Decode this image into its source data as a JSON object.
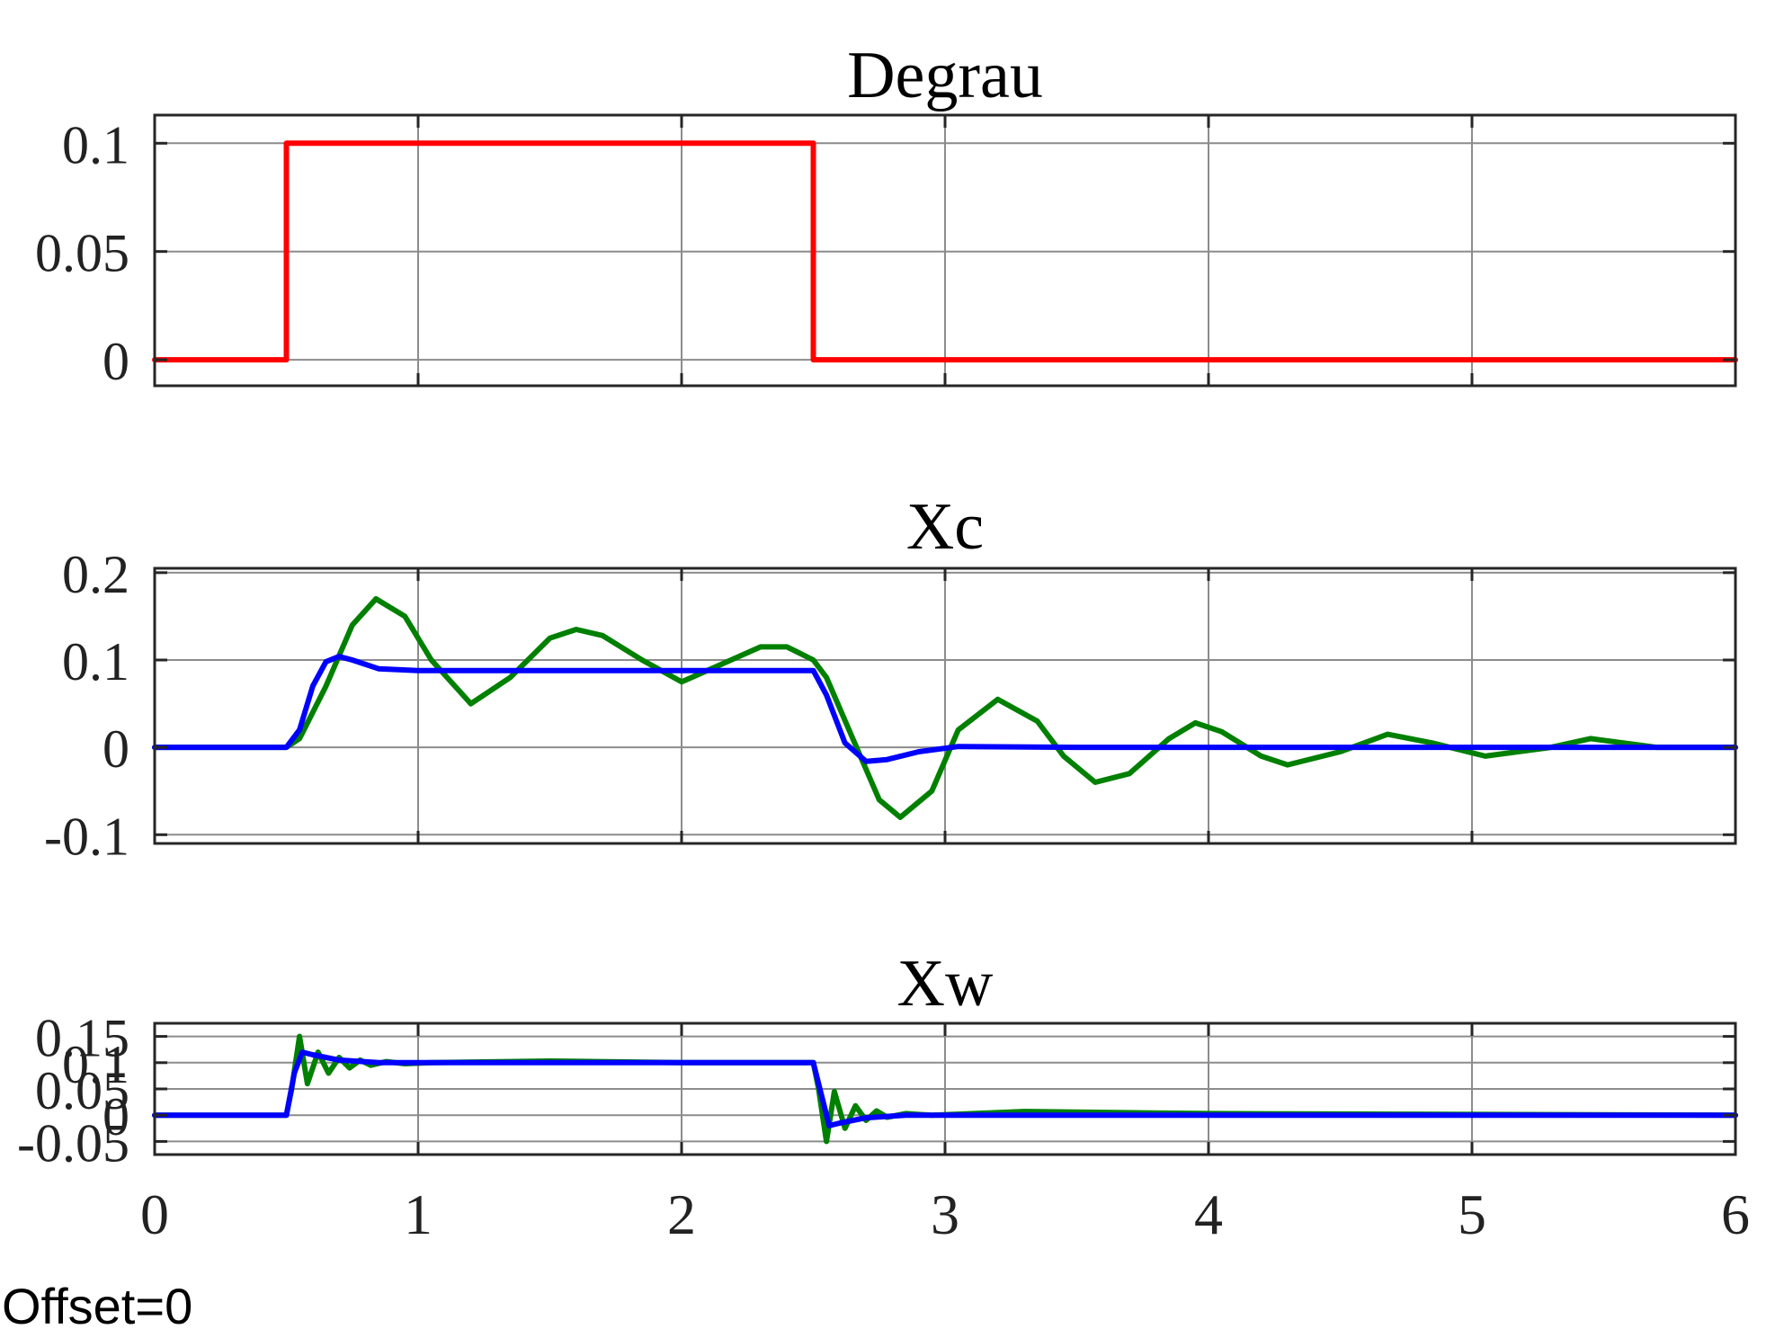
{
  "footer": {
    "offset_text": "Offset=0"
  },
  "colors": {
    "degrau": "#ff0000",
    "green": "#008000",
    "blue": "#0000ff",
    "grid": "#8c8c8c",
    "axes": "#262626"
  },
  "chart_data": [
    {
      "type": "line",
      "title": "Degrau",
      "xlim": [
        0,
        6
      ],
      "ylim": [
        -0.012,
        0.113
      ],
      "yticks": [
        0,
        0.05,
        0.1
      ],
      "ytick_labels": [
        "0",
        "0.05",
        "0.1"
      ],
      "xticks": [
        0,
        1,
        2,
        3,
        4,
        5,
        6
      ],
      "xtick_labels": [],
      "grid": true,
      "series": [
        {
          "color": "#ff0000",
          "x": [
            0,
            0.5,
            0.5,
            2.5,
            2.5,
            6
          ],
          "y": [
            0,
            0,
            0.1,
            0.1,
            0,
            0
          ]
        }
      ]
    },
    {
      "type": "line",
      "title": "Xc",
      "xlim": [
        0,
        6
      ],
      "ylim": [
        -0.11,
        0.205
      ],
      "yticks": [
        -0.1,
        0,
        0.1,
        0.2
      ],
      "ytick_labels": [
        "-0.1",
        "0",
        "0.1",
        "0.2"
      ],
      "xticks": [
        0,
        1,
        2,
        3,
        4,
        5,
        6
      ],
      "xtick_labels": [],
      "grid": true,
      "series": [
        {
          "color": "#008000",
          "x": [
            0,
            0.5,
            0.55,
            0.65,
            0.75,
            0.84,
            0.95,
            1.05,
            1.2,
            1.35,
            1.5,
            1.6,
            1.7,
            1.85,
            2.0,
            2.15,
            2.3,
            2.4,
            2.5,
            2.55,
            2.65,
            2.75,
            2.83,
            2.95,
            3.05,
            3.2,
            3.35,
            3.45,
            3.57,
            3.7,
            3.85,
            3.95,
            4.05,
            4.2,
            4.3,
            4.5,
            4.68,
            4.85,
            5.05,
            5.3,
            5.45,
            5.7,
            6.0
          ],
          "y": [
            0,
            0,
            0.01,
            0.07,
            0.14,
            0.17,
            0.15,
            0.1,
            0.05,
            0.08,
            0.125,
            0.135,
            0.128,
            0.1,
            0.075,
            0.095,
            0.115,
            0.115,
            0.1,
            0.08,
            0.01,
            -0.06,
            -0.08,
            -0.05,
            0.02,
            0.055,
            0.03,
            -0.01,
            -0.04,
            -0.03,
            0.01,
            0.028,
            0.018,
            -0.01,
            -0.02,
            -0.005,
            0.015,
            0.005,
            -0.01,
            0.0,
            0.01,
            0.0,
            0.0
          ]
        },
        {
          "color": "#0000ff",
          "x": [
            0,
            0.5,
            0.55,
            0.6,
            0.65,
            0.7,
            0.75,
            0.85,
            1.0,
            1.5,
            2.5,
            2.55,
            2.62,
            2.7,
            2.78,
            2.9,
            3.05,
            3.5,
            6.0
          ],
          "y": [
            0,
            0,
            0.02,
            0.07,
            0.098,
            0.104,
            0.1,
            0.09,
            0.088,
            0.088,
            0.088,
            0.06,
            0.005,
            -0.016,
            -0.014,
            -0.005,
            0.001,
            0.0,
            0.0
          ]
        }
      ]
    },
    {
      "type": "line",
      "title": "Xw",
      "xlim": [
        0,
        6
      ],
      "ylim": [
        -0.075,
        0.175
      ],
      "yticks": [
        -0.05,
        0,
        0.05,
        0.1,
        0.15
      ],
      "ytick_labels": [
        "-0.05",
        "0",
        "0.05",
        "0.1",
        "0.15"
      ],
      "xticks": [
        0,
        1,
        2,
        3,
        4,
        5,
        6
      ],
      "xtick_labels": [
        "0",
        "1",
        "2",
        "3",
        "4",
        "5",
        "6"
      ],
      "grid": true,
      "series": [
        {
          "color": "#008000",
          "x": [
            0,
            0.5,
            0.52,
            0.55,
            0.58,
            0.62,
            0.66,
            0.7,
            0.74,
            0.78,
            0.82,
            0.88,
            0.95,
            1.05,
            1.5,
            2.0,
            2.5,
            2.52,
            2.55,
            2.58,
            2.62,
            2.66,
            2.7,
            2.74,
            2.78,
            2.85,
            2.95,
            3.3,
            4.0,
            6.0
          ],
          "y": [
            0,
            0,
            0.05,
            0.15,
            0.06,
            0.12,
            0.08,
            0.11,
            0.09,
            0.105,
            0.095,
            0.102,
            0.098,
            0.1,
            0.103,
            0.1,
            0.1,
            0.05,
            -0.05,
            0.045,
            -0.025,
            0.018,
            -0.01,
            0.008,
            -0.004,
            0.003,
            0.0,
            0.007,
            0.003,
            0.0
          ]
        },
        {
          "color": "#0000ff",
          "x": [
            0,
            0.5,
            0.53,
            0.56,
            0.6,
            0.7,
            0.85,
            1.0,
            2.5,
            2.53,
            2.56,
            2.6,
            2.7,
            2.85,
            3.0,
            6.0
          ],
          "y": [
            0,
            0,
            0.08,
            0.12,
            0.115,
            0.105,
            0.1,
            0.1,
            0.1,
            0.04,
            -0.02,
            -0.015,
            -0.005,
            0.0,
            0.0,
            0.0
          ]
        }
      ]
    }
  ]
}
